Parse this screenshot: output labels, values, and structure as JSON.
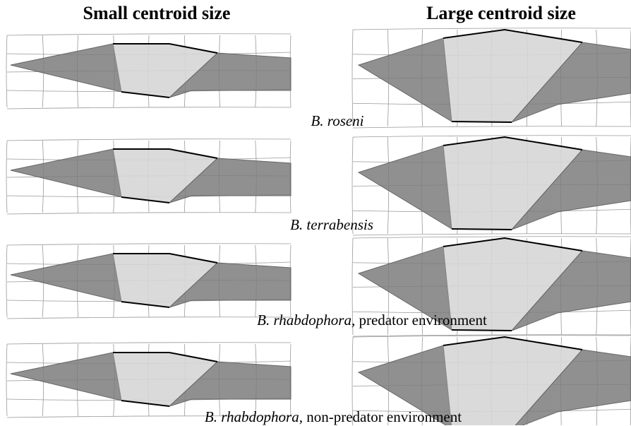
{
  "headers": [
    "Small centroid size",
    "Large centroid size"
  ],
  "rows": [
    {
      "species": "B. roseni"
    },
    {
      "species": "B. terrabensis"
    },
    {
      "species": "B. rhabdophora,",
      "environment": "predator environment"
    },
    {
      "species": "B. rhabdophora,",
      "environment": "non-predator environment"
    }
  ]
}
